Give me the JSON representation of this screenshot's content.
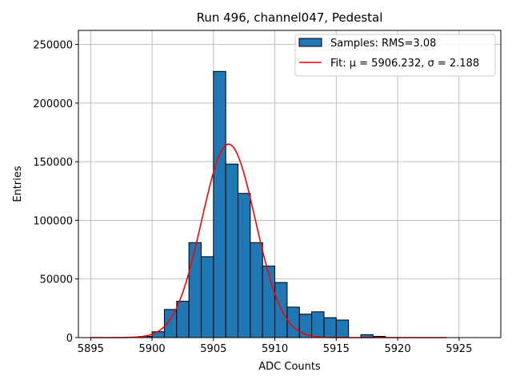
{
  "chart_data": {
    "type": "bar",
    "title": "Run 496, channel047, Pedestal",
    "xlabel": "ADC Counts",
    "ylabel": "Entries",
    "xlim": [
      5894,
      5928.4
    ],
    "ylim": [
      0,
      262000
    ],
    "xticks": [
      5895,
      5900,
      5905,
      5910,
      5915,
      5920,
      5925
    ],
    "yticks": [
      0,
      50000,
      100000,
      150000,
      200000,
      250000
    ],
    "grid": true,
    "legend_position": "top-right",
    "bar_color": "#1f77b4",
    "fit_color": "#ff0000",
    "histogram": {
      "name": "Samples: RMS=3.08",
      "bin_edges": [
        5899,
        5900,
        5901,
        5902,
        5903,
        5904,
        5905,
        5906,
        5907,
        5908,
        5909,
        5910,
        5911,
        5912,
        5913,
        5914,
        5915,
        5916,
        5917,
        5918,
        5919
      ],
      "counts": [
        1000,
        5000,
        24000,
        31000,
        81000,
        69000,
        227000,
        148000,
        123000,
        81000,
        61000,
        47000,
        26000,
        20000,
        22000,
        17000,
        15000,
        0,
        2500,
        1000
      ]
    },
    "fit": {
      "name": "Fit: μ = 5906.232, σ = 2.188",
      "mu": 5906.232,
      "sigma": 2.188,
      "amplitude": 165000,
      "x_range": [
        5895,
        5924
      ]
    }
  }
}
